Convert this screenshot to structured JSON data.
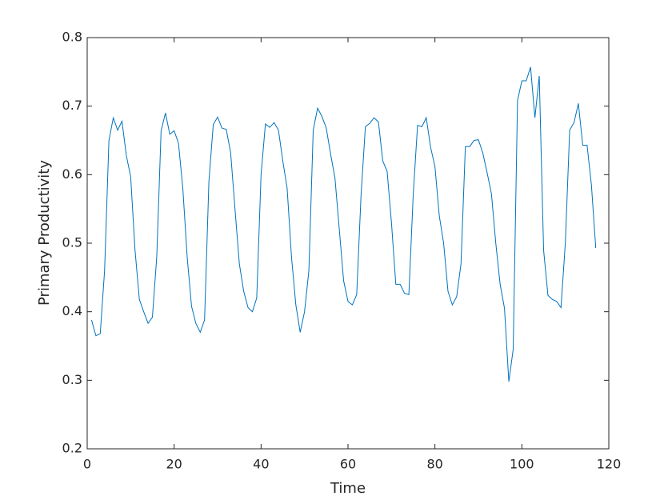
{
  "chart_data": {
    "type": "line",
    "xlabel": "Time",
    "ylabel": "Primary Productivity",
    "xlim": [
      0,
      120
    ],
    "xticks": [
      0,
      20,
      40,
      60,
      80,
      100,
      120
    ],
    "ylim": [
      0.2,
      0.8
    ],
    "yticks": [
      0.2,
      0.3,
      0.4,
      0.5,
      0.6,
      0.7,
      0.8
    ],
    "x": [
      1,
      2,
      3,
      4,
      5,
      6,
      7,
      8,
      9,
      10,
      11,
      12,
      13,
      14,
      15,
      16,
      17,
      18,
      19,
      20,
      21,
      22,
      23,
      24,
      25,
      26,
      27,
      28,
      29,
      30,
      31,
      32,
      33,
      34,
      35,
      36,
      37,
      38,
      39,
      40,
      41,
      42,
      43,
      44,
      45,
      46,
      47,
      48,
      49,
      50,
      51,
      52,
      53,
      54,
      55,
      56,
      57,
      58,
      59,
      60,
      61,
      62,
      63,
      64,
      65,
      66,
      67,
      68,
      69,
      70,
      71,
      72,
      73,
      74,
      75,
      76,
      77,
      78,
      79,
      80,
      81,
      82,
      83,
      84,
      85,
      86,
      87,
      88,
      89,
      90,
      91,
      92,
      93,
      94,
      95,
      96,
      97,
      98,
      99,
      100,
      101,
      102,
      103,
      104,
      105,
      106,
      107,
      108,
      109,
      110,
      111,
      112,
      113,
      114,
      115,
      116,
      117
    ],
    "series": [
      {
        "color": "#0072bd",
        "values": [
          0.388,
          0.365,
          0.368,
          0.46,
          0.65,
          0.683,
          0.665,
          0.678,
          0.628,
          0.597,
          0.49,
          0.418,
          0.4,
          0.383,
          0.392,
          0.48,
          0.664,
          0.69,
          0.659,
          0.664,
          0.646,
          0.58,
          0.48,
          0.408,
          0.383,
          0.37,
          0.388,
          0.59,
          0.673,
          0.684,
          0.668,
          0.666,
          0.632,
          0.55,
          0.47,
          0.43,
          0.406,
          0.4,
          0.42,
          0.6,
          0.674,
          0.669,
          0.676,
          0.665,
          0.62,
          0.58,
          0.48,
          0.41,
          0.37,
          0.4,
          0.46,
          0.665,
          0.697,
          0.685,
          0.668,
          0.63,
          0.595,
          0.52,
          0.445,
          0.415,
          0.41,
          0.425,
          0.57,
          0.67,
          0.675,
          0.683,
          0.677,
          0.62,
          0.605,
          0.53,
          0.44,
          0.44,
          0.427,
          0.425,
          0.57,
          0.672,
          0.67,
          0.683,
          0.64,
          0.612,
          0.54,
          0.5,
          0.43,
          0.41,
          0.422,
          0.47,
          0.641,
          0.641,
          0.65,
          0.651,
          0.632,
          0.603,
          0.572,
          0.5,
          0.44,
          0.405,
          0.298,
          0.345,
          0.708,
          0.737,
          0.737,
          0.757,
          0.683,
          0.744,
          0.49,
          0.424,
          0.418,
          0.415,
          0.406,
          0.5,
          0.665,
          0.676,
          0.704,
          0.643,
          0.643,
          0.585,
          0.493
        ]
      }
    ]
  }
}
